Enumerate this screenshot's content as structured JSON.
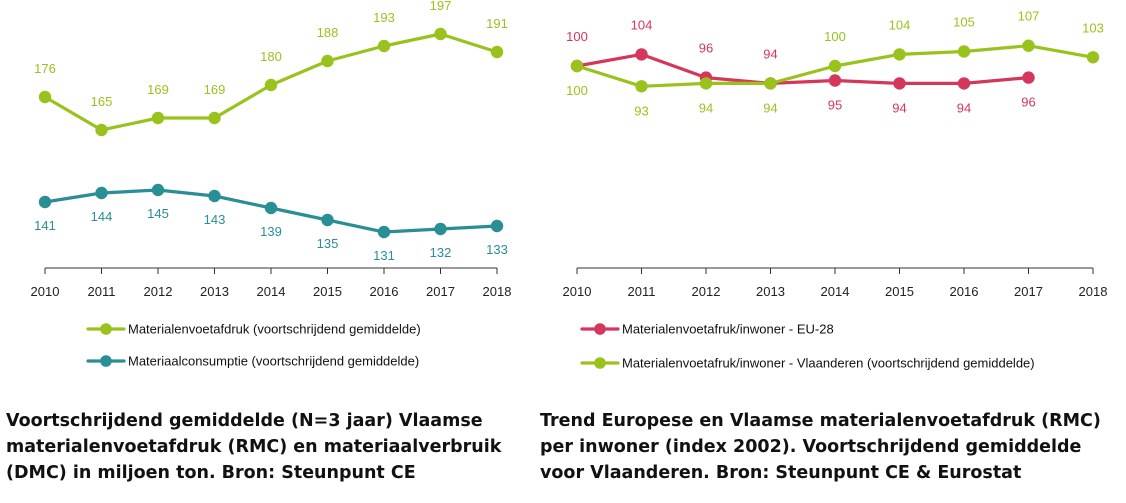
{
  "colors": {
    "green": "#99c31c",
    "teal": "#2a8e95",
    "red": "#d5365b",
    "axis": "#333333",
    "text": "#222222"
  },
  "chart_data": [
    {
      "type": "line",
      "x": [
        "2010",
        "2011",
        "2012",
        "2013",
        "2014",
        "2015",
        "2016",
        "2017",
        "2018"
      ],
      "series": [
        {
          "name": "Materialenvoetafdruk (voortschrijdend gemiddelde)",
          "color": "#99c31c",
          "values": [
            176,
            165,
            169,
            169,
            180,
            188,
            193,
            197,
            191
          ],
          "labels": [
            "176",
            "165",
            "169",
            "169",
            "180",
            "188",
            "193",
            "197",
            "191"
          ]
        },
        {
          "name": "Materiaalconsumptie (voortschrijdend gemiddelde)",
          "color": "#2a8e95",
          "values": [
            141,
            144,
            145,
            143,
            139,
            135,
            131,
            132,
            133
          ],
          "labels": [
            "141",
            "144",
            "145",
            "143",
            "139",
            "135",
            "131",
            "132",
            "133"
          ]
        }
      ],
      "caption": "Voortschrijdend gemiddelde (N=3 jaar) Vlaamse materialenvoetafdruk (RMC) en materiaalverbruik (DMC) in miljoen ton. Bron: Steunpunt CE",
      "legend_position": "bottom",
      "grid": false
    },
    {
      "type": "line",
      "x": [
        "2010",
        "2011",
        "2012",
        "2013",
        "2014",
        "2015",
        "2016",
        "2017",
        "2018"
      ],
      "series": [
        {
          "name": "Materialenvoetafruk/inwoner - EU-28",
          "color": "#d5365b",
          "values": [
            100,
            104,
            96,
            94,
            95,
            94,
            94,
            96,
            null
          ],
          "labels": [
            "100",
            "104",
            "96",
            "94",
            "95",
            "94",
            "94",
            "96",
            null
          ]
        },
        {
          "name": "Materialenvoetafruk/inwoner - Vlaanderen (voortschrijdend gemiddelde)",
          "color": "#99c31c",
          "values": [
            100,
            93,
            94,
            94,
            100,
            104,
            105,
            107,
            103
          ],
          "labels": [
            "100",
            "93",
            "94",
            "94",
            "100",
            "104",
            "105",
            "107",
            "103"
          ]
        }
      ],
      "caption": "Trend Europese en Vlaamse materialenvoetafdruk (RMC) per inwoner (index 2002). Voortschrijdend gemiddelde voor Vlaanderen. Bron: Steunpunt CE & Eurostat",
      "legend_position": "bottom",
      "grid": false
    }
  ]
}
